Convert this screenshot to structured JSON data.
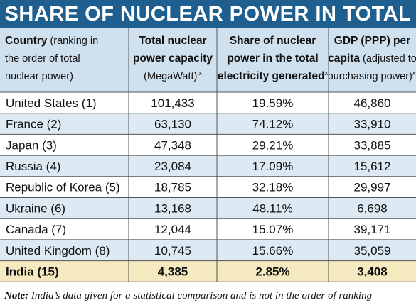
{
  "chart_data": {
    "type": "table",
    "title": "SHARE OF NUCLEAR POWER IN TOTAL",
    "columns": [
      {
        "lines": [
          {
            "bold": "Country",
            "regular": " (ranking in"
          },
          {
            "bold": "",
            "regular": "the order of total"
          },
          {
            "bold": "",
            "regular": "nuclear power)"
          }
        ],
        "sup": ""
      },
      {
        "lines": [
          {
            "bold": "Total nuclear",
            "regular": ""
          },
          {
            "bold": "power capacity",
            "regular": ""
          },
          {
            "bold": "",
            "regular": "(MegaWatt)"
          }
        ],
        "sup": "ix"
      },
      {
        "lines": [
          {
            "bold": "Share of nuclear",
            "regular": ""
          },
          {
            "bold": "power in the total",
            "regular": ""
          },
          {
            "bold": "electricity generated",
            "regular": ""
          }
        ],
        "sup": "x"
      },
      {
        "lines": [
          {
            "bold": "GDP (PPP) per",
            "regular": ""
          },
          {
            "bold": "capita",
            "regular": " (adjusted to"
          },
          {
            "bold": "",
            "regular": "purchasing power)"
          }
        ],
        "sup": "xi"
      }
    ],
    "rows": [
      {
        "country": "United States (1)",
        "capacity": "101,433",
        "share": "19.59%",
        "gdp": "46,860",
        "highlight": false
      },
      {
        "country": "France (2)",
        "capacity": "63,130",
        "share": "74.12%",
        "gdp": "33,910",
        "highlight": false
      },
      {
        "country": "Japan (3)",
        "capacity": "47,348",
        "share": "29.21%",
        "gdp": "33,885",
        "highlight": false
      },
      {
        "country": "Russia (4)",
        "capacity": "23,084",
        "share": "17.09%",
        "gdp": "15,612",
        "highlight": false
      },
      {
        "country": "Republic of Korea (5)",
        "capacity": "18,785",
        "share": "32.18%",
        "gdp": "29,997",
        "highlight": false
      },
      {
        "country": "Ukraine (6)",
        "capacity": "13,168",
        "share": "48.11%",
        "gdp": "6,698",
        "highlight": false
      },
      {
        "country": "Canada (7)",
        "capacity": "12,044",
        "share": "15.07%",
        "gdp": "39,171",
        "highlight": false
      },
      {
        "country": "United Kingdom (8)",
        "capacity": "10,745",
        "share": "15.66%",
        "gdp": "35,059",
        "highlight": false
      },
      {
        "country": "India (15)",
        "capacity": "4,385",
        "share": "2.85%",
        "gdp": "3,408",
        "highlight": true
      }
    ],
    "note_label": "Note:",
    "note_text": " India’s data given for a statistical comparison and is not in the order of ranking"
  },
  "colors": {
    "title_bg": "#1e5f8f",
    "header_bg": "#cfe0ee",
    "row_light": "#ffffff",
    "row_tint": "#dde9f3",
    "highlight_bg": "#f5e9c0",
    "grid": "#555555"
  }
}
